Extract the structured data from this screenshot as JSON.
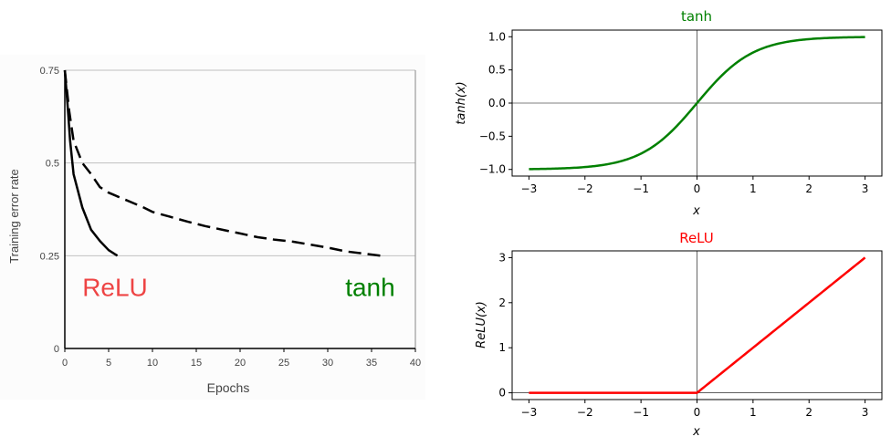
{
  "colors": {
    "relu": "#ff0000",
    "relu_annotation": "#ee4444",
    "tanh": "#008000",
    "curve": "#000000",
    "grid": "#c0c0c0",
    "panel_bg": "#fcfcfc"
  },
  "chart_data": [
    {
      "type": "line",
      "title": "",
      "xlabel": "Epochs",
      "ylabel": "Training error rate",
      "xlim": [
        0,
        40
      ],
      "ylim": [
        0,
        0.75
      ],
      "x_ticks": [
        "0",
        "5",
        "10",
        "15",
        "20",
        "25",
        "30",
        "35",
        "40"
      ],
      "y_ticks": [
        "0",
        "0.25",
        "0.5",
        "0.75"
      ],
      "grid": "horizontal",
      "annotations": [
        {
          "text": "ReLU",
          "x": 2,
          "y": 0.2,
          "color": "#ee4444"
        },
        {
          "text": "tanh",
          "x": 32,
          "y": 0.2,
          "color": "#008000"
        }
      ],
      "series": [
        {
          "name": "ReLU",
          "style": "solid",
          "x": [
            0,
            0.3,
            0.6,
            1,
            2,
            3,
            4,
            5,
            6
          ],
          "y": [
            0.75,
            0.66,
            0.56,
            0.47,
            0.38,
            0.32,
            0.29,
            0.265,
            0.25
          ]
        },
        {
          "name": "tanh",
          "style": "dashed",
          "x": [
            0,
            0.5,
            1,
            2,
            3,
            4,
            5,
            6,
            7,
            8,
            9,
            10,
            12,
            14,
            16,
            18,
            20,
            22,
            24,
            26,
            28,
            30,
            32,
            34,
            36
          ],
          "y": [
            0.75,
            0.64,
            0.56,
            0.5,
            0.47,
            0.435,
            0.42,
            0.41,
            0.4,
            0.39,
            0.38,
            0.368,
            0.355,
            0.342,
            0.33,
            0.32,
            0.31,
            0.3,
            0.293,
            0.288,
            0.28,
            0.272,
            0.262,
            0.256,
            0.25
          ]
        }
      ]
    },
    {
      "type": "line",
      "title": "tanh",
      "xlabel": "x",
      "ylabel": "tanh(x)",
      "xlim": [
        -3.3,
        3.3
      ],
      "ylim": [
        -1.1,
        1.1
      ],
      "x_ticks": [
        -3,
        -2,
        -1,
        0,
        1,
        2,
        3
      ],
      "x_tick_labels": [
        "−3",
        "−2",
        "−1",
        "0",
        "1",
        "2",
        "3"
      ],
      "y_ticks": [
        -1.0,
        -0.5,
        0.0,
        0.5,
        1.0
      ],
      "y_tick_labels": [
        "−1.0",
        "−0.5",
        "0.0",
        "0.5",
        "1.0"
      ],
      "function": "tanh",
      "x_range": [
        -3,
        3
      ],
      "color": "#008000",
      "reference_lines": {
        "x": 0,
        "y": 0
      }
    },
    {
      "type": "line",
      "title": "ReLU",
      "xlabel": "x",
      "ylabel": "ReLU(x)",
      "xlim": [
        -3.3,
        3.3
      ],
      "ylim": [
        -0.15,
        3.15
      ],
      "x_ticks": [
        -3,
        -2,
        -1,
        0,
        1,
        2,
        3
      ],
      "x_tick_labels": [
        "−3",
        "−2",
        "−1",
        "0",
        "1",
        "2",
        "3"
      ],
      "y_ticks": [
        0,
        1,
        2,
        3
      ],
      "y_tick_labels": [
        "0",
        "1",
        "2",
        "3"
      ],
      "function": "relu",
      "x_range": [
        -3,
        3
      ],
      "color": "#ff0000",
      "reference_lines": {
        "x": 0,
        "y": 0
      }
    }
  ]
}
